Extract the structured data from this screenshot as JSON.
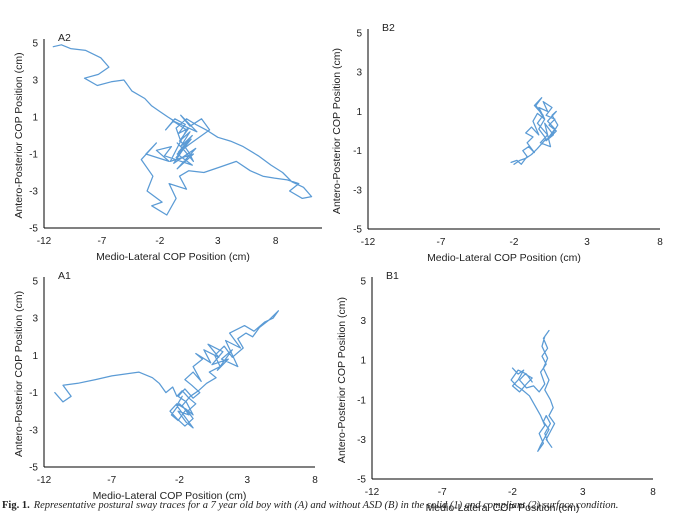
{
  "figure": {
    "caption_label": "Fig. 1.",
    "caption_text": "Representative postural sway traces for a 7 year old boy with (A) and without ASD (B) in the solid (1) and compliant (2) surface condition.",
    "trace_color": "#5b9bd5"
  },
  "chart_data": [
    {
      "id": "A2",
      "type": "line",
      "panel_label": "A2",
      "xlabel": "Medio-Lateral COP Position (cm)",
      "ylabel": "Antero-Posterior  COP Position (cm)",
      "xlim": [
        -12,
        12
      ],
      "ylim": [
        -5,
        5
      ],
      "xticks": [
        -12,
        -7,
        -2,
        3,
        8
      ],
      "yticks": [
        -5,
        -3,
        -1,
        1,
        3,
        5
      ],
      "x": [
        -11.2,
        -10.5,
        -9.7,
        -8.4,
        -7.1,
        -6.4,
        -7.3,
        -8.5,
        -7.4,
        -6.2,
        -5.1,
        -4.4,
        -3.3,
        -2.7,
        -2.0,
        -1.3,
        -0.8,
        -1.5,
        -0.7,
        0.2,
        -0.4,
        0.5,
        -0.3,
        0.6,
        -0.2,
        0.8,
        -0.4,
        0.7,
        -0.6,
        0.4,
        -0.8,
        1.1,
        -0.5,
        0.9,
        -1.1,
        0.3,
        -0.9,
        1.2,
        -0.2,
        0.6,
        1.6,
        2.3,
        0.5,
        -0.5,
        0.8,
        -1.6,
        -1.0,
        -2.3,
        -1.2,
        -3.2,
        -2.3,
        -3.6,
        -2.6,
        -3.1,
        -1.8,
        -2.7,
        -1.4,
        -0.6,
        -1.2,
        0.3,
        -0.3,
        0.5,
        1.8,
        3.2,
        4.6,
        5.8,
        6.9,
        7.9,
        9.0,
        10.0,
        9.2,
        10.3,
        11.1,
        10.4,
        9.4,
        8.6,
        7.6,
        6.5,
        5.2,
        4.1,
        3.0,
        2.0,
        1.1,
        0.3,
        -0.6,
        -0.2,
        0.5,
        0.9,
        0.1,
        -0.5
      ],
      "y": [
        4.8,
        4.9,
        4.7,
        4.6,
        4.2,
        3.7,
        3.3,
        3.1,
        2.7,
        2.9,
        3.0,
        2.4,
        2.0,
        1.6,
        1.3,
        1.0,
        0.8,
        0.3,
        0.9,
        0.6,
        0.1,
        0.4,
        -0.3,
        0.2,
        -0.6,
        0.0,
        -0.9,
        -0.2,
        -1.2,
        -0.4,
        -1.5,
        -0.7,
        -1.8,
        -1.0,
        -1.4,
        0.3,
        0.8,
        0.2,
        1.1,
        0.5,
        0.9,
        0.3,
        -0.5,
        -1.0,
        -1.6,
        -1.1,
        -0.6,
        -0.8,
        -1.4,
        -1.0,
        -0.4,
        -1.3,
        -2.2,
        -3.0,
        -3.6,
        -3.8,
        -4.3,
        -3.4,
        -2.6,
        -2.9,
        -2.2,
        -1.9,
        -2.0,
        -1.7,
        -1.4,
        -1.9,
        -2.2,
        -2.3,
        -2.4,
        -2.6,
        -3.0,
        -3.4,
        -3.3,
        -2.8,
        -2.5,
        -2.0,
        -1.6,
        -1.1,
        -0.6,
        -0.3,
        -0.1,
        0.3,
        0.6,
        0.9,
        0.4,
        -0.3,
        -0.9,
        -1.4,
        -0.8,
        -0.4
      ]
    },
    {
      "id": "B2",
      "type": "line",
      "panel_label": "B2",
      "xlabel": "Medio-Lateral COP Position (cm)",
      "ylabel": "Antero-Posterior  COP Position (cm)",
      "xlim": [
        -12,
        8
      ],
      "ylim": [
        -5,
        5
      ],
      "xticks": [
        -12,
        -7,
        -2,
        3,
        8
      ],
      "yticks": [
        -5,
        -3,
        -1,
        1,
        3,
        5
      ],
      "x": [
        -2.2,
        -1.8,
        -1.5,
        -1.1,
        -1.4,
        -1.0,
        -0.6,
        -1.1,
        -0.7,
        -1.2,
        -0.8,
        -0.3,
        -0.7,
        -0.4,
        0.1,
        -0.3,
        0.3,
        0.0,
        0.6,
        0.2,
        0.8,
        0.4,
        0.9,
        0.5,
        1.0,
        0.6,
        0.9,
        0.3,
        0.8,
        0.2,
        0.7,
        0.1,
        0.5,
        -0.2,
        0.3,
        -0.4,
        0.0,
        -0.6,
        -0.1,
        -0.5,
        0.1,
        -0.3,
        0.2,
        -0.4,
        -0.8,
        -1.2,
        -1.6,
        -2.0
      ],
      "y": [
        -1.6,
        -1.5,
        -1.7,
        -1.3,
        -1.0,
        -0.8,
        -1.1,
        -0.6,
        -0.3,
        -0.1,
        0.2,
        -0.2,
        0.5,
        0.9,
        0.6,
        1.2,
        1.0,
        1.5,
        1.2,
        0.8,
        0.6,
        0.3,
        0.0,
        -0.3,
        0.3,
        0.8,
        1.0,
        0.5,
        0.1,
        -0.5,
        -0.2,
        0.4,
        -0.8,
        -0.6,
        -0.2,
        0.4,
        0.8,
        1.3,
        1.7,
        1.3,
        0.6,
        0.1,
        -0.4,
        -0.9,
        -1.2,
        -1.4,
        -1.5,
        -1.7
      ]
    },
    {
      "id": "A1",
      "type": "line",
      "panel_label": "A1",
      "xlabel": "Medio-Lateral COP Position (cm)",
      "ylabel": "Antero-Posterior  COP Position (cm)",
      "xlim": [
        -12,
        8
      ],
      "ylim": [
        -5,
        5
      ],
      "xticks": [
        -12,
        -7,
        -2,
        3,
        8
      ],
      "yticks": [
        -5,
        -3,
        -1,
        1,
        3,
        5
      ],
      "x": [
        -11.2,
        -10.6,
        -10.0,
        -10.6,
        -9.5,
        -8.2,
        -7.0,
        -6.0,
        -5.0,
        -4.0,
        -3.5,
        -3.0,
        -2.5,
        -2.2,
        -1.8,
        -1.3,
        -0.8,
        -1.4,
        -2.0,
        -2.6,
        -2.1,
        -1.5,
        -1.0,
        -1.6,
        -2.2,
        -2.7,
        -2.2,
        -1.5,
        -1.0,
        -1.5,
        -2.1,
        -1.6,
        -1.0,
        -0.5,
        -1.1,
        -1.6,
        -1.0,
        -0.4,
        -1.0,
        -0.3,
        -0.8,
        0.3,
        -0.2,
        0.9,
        0.1,
        1.2,
        0.4,
        1.6,
        0.8,
        1.9,
        1.1,
        2.3,
        1.4,
        2.5,
        1.7,
        2.8,
        3.5,
        4.3,
        4.9,
        5.3,
        4.6,
        3.9,
        3.4,
        2.9,
        2.3,
        2.7,
        1.9,
        1.3,
        0.6,
        1.0,
        0.2,
        0.7,
        0.0,
        -0.6,
        -1.2,
        -1.8,
        -1.3,
        -2.1,
        -1.5,
        -1.0,
        -1.6,
        -2.2,
        -1.8
      ],
      "y": [
        -1.0,
        -1.5,
        -1.2,
        -0.6,
        -0.5,
        -0.3,
        -0.1,
        0.0,
        0.1,
        -0.2,
        -0.5,
        -1.0,
        -0.7,
        -1.2,
        -0.9,
        -1.3,
        -1.6,
        -2.0,
        -1.6,
        -2.2,
        -2.5,
        -1.9,
        -2.4,
        -2.8,
        -2.4,
        -2.0,
        -1.6,
        -1.9,
        -2.2,
        -1.5,
        -1.2,
        -0.8,
        -1.3,
        -1.0,
        -0.6,
        -0.3,
        0.1,
        -0.4,
        0.4,
        0.8,
        1.1,
        0.6,
        1.3,
        0.9,
        1.6,
        1.2,
        0.5,
        0.8,
        0.2,
        1.3,
        0.8,
        0.4,
        1.8,
        1.4,
        2.2,
        2.6,
        2.3,
        2.8,
        3.0,
        3.4,
        2.9,
        2.5,
        2.0,
        2.2,
        1.9,
        1.4,
        0.9,
        1.5,
        1.0,
        0.4,
        0.1,
        -0.2,
        -0.5,
        -0.9,
        -1.2,
        -1.7,
        -2.2,
        -2.0,
        -2.6,
        -2.9,
        -2.3,
        -1.7,
        -1.2
      ]
    },
    {
      "id": "B1",
      "type": "line",
      "panel_label": "B1",
      "xlabel": "Medio-Lateral COP Position (cm)",
      "ylabel": "Antero-Posterior  COP Position (cm)",
      "xlim": [
        -12,
        8
      ],
      "ylim": [
        -5,
        5
      ],
      "xticks": [
        -12,
        -7,
        -2,
        3,
        8
      ],
      "yticks": [
        -5,
        -3,
        -1,
        1,
        3,
        5
      ],
      "x": [
        -2.0,
        -1.6,
        -1.2,
        -1.6,
        -2.0,
        -1.5,
        -1.0,
        -0.6,
        -1.1,
        -1.5,
        -1.0,
        -0.5,
        -0.1,
        0.3,
        0.0,
        0.4,
        0.1,
        0.5,
        0.2,
        0.6,
        0.3,
        0.1,
        0.5,
        0.2,
        0.6,
        0.3,
        0.7,
        0.9,
        0.6,
        1.0,
        0.7,
        0.4,
        0.8,
        0.5,
        0.3,
        0.7,
        0.4,
        0.2,
        0.6,
        0.3,
        0.0,
        -0.2,
        0.2,
        -0.1,
        0.3,
        0.0,
        -0.4,
        -0.8,
        -1.3,
        -1.7,
        -2.1,
        -1.6,
        -1.0,
        -0.6
      ],
      "y": [
        0.6,
        0.3,
        0.5,
        0.0,
        -0.3,
        -0.6,
        -0.2,
        0.1,
        0.3,
        0.0,
        -0.4,
        -0.3,
        -0.6,
        -0.2,
        0.4,
        0.8,
        1.2,
        1.6,
        2.1,
        2.5,
        2.2,
        1.7,
        1.1,
        0.6,
        0.0,
        -0.5,
        -1.0,
        -1.4,
        -1.8,
        -2.2,
        -2.6,
        -3.0,
        -3.4,
        -3.1,
        -2.7,
        -2.2,
        -1.8,
        -2.1,
        -2.5,
        -2.9,
        -3.3,
        -3.6,
        -3.2,
        -2.7,
        -2.3,
        -1.8,
        -1.3,
        -0.8,
        -0.5,
        -0.3,
        0.0,
        0.5,
        0.3,
        -0.1
      ]
    }
  ]
}
